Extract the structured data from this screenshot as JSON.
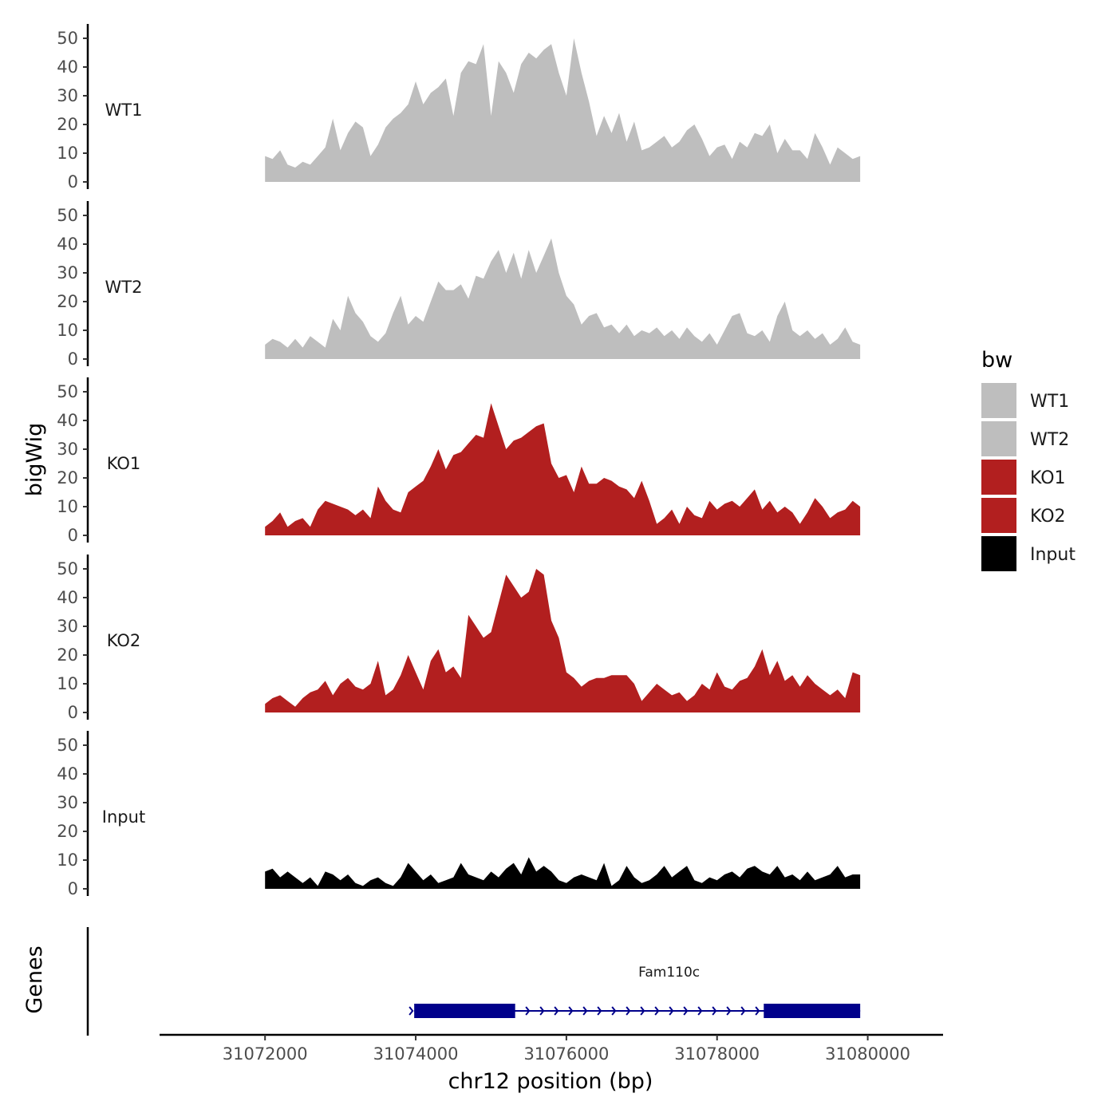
{
  "chart_data": {
    "type": "area",
    "title": "",
    "xlabel": "chr12 position (bp)",
    "ylabel": "bigWig",
    "genes_label": "Genes",
    "xlim": [
      31070600,
      31081000
    ],
    "x_ticks": [
      31072000,
      31074000,
      31076000,
      31078000,
      31080000
    ],
    "x_tick_labels": [
      "31072000",
      "31074000",
      "31076000",
      "31078000",
      "31080000"
    ],
    "ylim": [
      0,
      52
    ],
    "y_ticks": [
      0,
      10,
      20,
      30,
      40,
      50
    ],
    "y_tick_labels": [
      "0",
      "10",
      "20",
      "30",
      "40",
      "50"
    ],
    "grid": false,
    "legend": {
      "title": "bw",
      "position": "right",
      "entries": [
        {
          "label": "WT1",
          "color": "#bebebe"
        },
        {
          "label": "WT2",
          "color": "#bebebe"
        },
        {
          "label": "KO1",
          "color": "#b21f1f"
        },
        {
          "label": "KO2",
          "color": "#b21f1f"
        },
        {
          "label": "Input",
          "color": "#000000"
        }
      ]
    },
    "series": [
      {
        "name": "WT1",
        "color": "#bebebe",
        "x": [
          31072000,
          31072100,
          31072200,
          31072300,
          31072400,
          31072500,
          31072600,
          31072700,
          31072800,
          31072900,
          31073000,
          31073100,
          31073200,
          31073300,
          31073400,
          31073500,
          31073600,
          31073700,
          31073800,
          31073900,
          31074000,
          31074100,
          31074200,
          31074300,
          31074400,
          31074500,
          31074600,
          31074700,
          31074800,
          31074900,
          31075000,
          31075100,
          31075200,
          31075300,
          31075400,
          31075500,
          31075600,
          31075700,
          31075800,
          31075900,
          31076000,
          31076100,
          31076200,
          31076300,
          31076400,
          31076500,
          31076600,
          31076700,
          31076800,
          31076900,
          31077000,
          31077100,
          31077200,
          31077300,
          31077400,
          31077500,
          31077600,
          31077700,
          31077800,
          31077900,
          31078000,
          31078100,
          31078200,
          31078300,
          31078400,
          31078500,
          31078600,
          31078700,
          31078800,
          31078900,
          31079000,
          31079100,
          31079200,
          31079300,
          31079400,
          31079500,
          31079600,
          31079700,
          31079800,
          31079900
        ],
        "values": [
          9,
          8,
          11,
          6,
          5,
          7,
          6,
          9,
          12,
          22,
          11,
          17,
          21,
          19,
          9,
          13,
          19,
          22,
          24,
          27,
          35,
          27,
          31,
          33,
          36,
          23,
          38,
          42,
          41,
          48,
          23,
          42,
          38,
          31,
          41,
          45,
          43,
          46,
          48,
          38,
          30,
          50,
          38,
          28,
          16,
          23,
          17,
          24,
          14,
          21,
          11,
          12,
          14,
          16,
          12,
          14,
          18,
          20,
          15,
          9,
          12,
          13,
          8,
          14,
          12,
          17,
          16,
          20,
          10,
          15,
          11,
          11,
          8,
          17,
          12,
          6,
          12,
          10,
          8,
          9
        ]
      },
      {
        "name": "WT2",
        "color": "#bebebe",
        "x": [
          31072000,
          31072100,
          31072200,
          31072300,
          31072400,
          31072500,
          31072600,
          31072700,
          31072800,
          31072900,
          31073000,
          31073100,
          31073200,
          31073300,
          31073400,
          31073500,
          31073600,
          31073700,
          31073800,
          31073900,
          31074000,
          31074100,
          31074200,
          31074300,
          31074400,
          31074500,
          31074600,
          31074700,
          31074800,
          31074900,
          31075000,
          31075100,
          31075200,
          31075300,
          31075400,
          31075500,
          31075600,
          31075700,
          31075800,
          31075900,
          31076000,
          31076100,
          31076200,
          31076300,
          31076400,
          31076500,
          31076600,
          31076700,
          31076800,
          31076900,
          31077000,
          31077100,
          31077200,
          31077300,
          31077400,
          31077500,
          31077600,
          31077700,
          31077800,
          31077900,
          31078000,
          31078100,
          31078200,
          31078300,
          31078400,
          31078500,
          31078600,
          31078700,
          31078800,
          31078900,
          31079000,
          31079100,
          31079200,
          31079300,
          31079400,
          31079500,
          31079600,
          31079700,
          31079800,
          31079900
        ],
        "values": [
          5,
          7,
          6,
          4,
          7,
          4,
          8,
          6,
          4,
          14,
          10,
          22,
          16,
          13,
          8,
          6,
          9,
          16,
          22,
          12,
          15,
          13,
          20,
          27,
          24,
          24,
          26,
          21,
          29,
          28,
          34,
          38,
          30,
          37,
          28,
          38,
          30,
          36,
          42,
          30,
          22,
          19,
          12,
          15,
          16,
          11,
          12,
          9,
          12,
          8,
          10,
          9,
          11,
          8,
          10,
          7,
          11,
          8,
          6,
          9,
          5,
          10,
          15,
          16,
          9,
          8,
          10,
          6,
          15,
          20,
          10,
          8,
          10,
          7,
          9,
          5,
          7,
          11,
          6,
          5
        ]
      },
      {
        "name": "KO1",
        "color": "#b21f1f",
        "x": [
          31072000,
          31072100,
          31072200,
          31072300,
          31072400,
          31072500,
          31072600,
          31072700,
          31072800,
          31072900,
          31073000,
          31073100,
          31073200,
          31073300,
          31073400,
          31073500,
          31073600,
          31073700,
          31073800,
          31073900,
          31074000,
          31074100,
          31074200,
          31074300,
          31074400,
          31074500,
          31074600,
          31074700,
          31074800,
          31074900,
          31075000,
          31075100,
          31075200,
          31075300,
          31075400,
          31075500,
          31075600,
          31075700,
          31075800,
          31075900,
          31076000,
          31076100,
          31076200,
          31076300,
          31076400,
          31076500,
          31076600,
          31076700,
          31076800,
          31076900,
          31077000,
          31077100,
          31077200,
          31077300,
          31077400,
          31077500,
          31077600,
          31077700,
          31077800,
          31077900,
          31078000,
          31078100,
          31078200,
          31078300,
          31078400,
          31078500,
          31078600,
          31078700,
          31078800,
          31078900,
          31079000,
          31079100,
          31079200,
          31079300,
          31079400,
          31079500,
          31079600,
          31079700,
          31079800,
          31079900
        ],
        "values": [
          3,
          5,
          8,
          3,
          5,
          6,
          3,
          9,
          12,
          11,
          10,
          9,
          7,
          9,
          6,
          17,
          12,
          9,
          8,
          15,
          17,
          19,
          24,
          30,
          23,
          28,
          29,
          32,
          35,
          34,
          46,
          38,
          30,
          33,
          34,
          36,
          38,
          39,
          25,
          20,
          21,
          15,
          24,
          18,
          18,
          20,
          19,
          17,
          16,
          13,
          19,
          12,
          4,
          6,
          9,
          4,
          10,
          7,
          6,
          12,
          9,
          11,
          12,
          10,
          13,
          16,
          9,
          12,
          8,
          10,
          8,
          4,
          8,
          13,
          10,
          6,
          8,
          9,
          12,
          10
        ]
      },
      {
        "name": "KO2",
        "color": "#b21f1f",
        "x": [
          31072000,
          31072100,
          31072200,
          31072300,
          31072400,
          31072500,
          31072600,
          31072700,
          31072800,
          31072900,
          31073000,
          31073100,
          31073200,
          31073300,
          31073400,
          31073500,
          31073600,
          31073700,
          31073800,
          31073900,
          31074000,
          31074100,
          31074200,
          31074300,
          31074400,
          31074500,
          31074600,
          31074700,
          31074800,
          31074900,
          31075000,
          31075100,
          31075200,
          31075300,
          31075400,
          31075500,
          31075600,
          31075700,
          31075800,
          31075900,
          31076000,
          31076100,
          31076200,
          31076300,
          31076400,
          31076500,
          31076600,
          31076700,
          31076800,
          31076900,
          31077000,
          31077100,
          31077200,
          31077300,
          31077400,
          31077500,
          31077600,
          31077700,
          31077800,
          31077900,
          31078000,
          31078100,
          31078200,
          31078300,
          31078400,
          31078500,
          31078600,
          31078700,
          31078800,
          31078900,
          31079000,
          31079100,
          31079200,
          31079300,
          31079400,
          31079500,
          31079600,
          31079700,
          31079800,
          31079900
        ],
        "values": [
          3,
          5,
          6,
          4,
          2,
          5,
          7,
          8,
          11,
          6,
          10,
          12,
          9,
          8,
          10,
          18,
          6,
          8,
          13,
          20,
          14,
          8,
          18,
          22,
          14,
          16,
          12,
          34,
          30,
          26,
          28,
          38,
          48,
          44,
          40,
          42,
          50,
          48,
          32,
          26,
          14,
          12,
          9,
          11,
          12,
          12,
          13,
          13,
          13,
          10,
          4,
          7,
          10,
          8,
          6,
          7,
          4,
          6,
          10,
          8,
          14,
          9,
          8,
          11,
          12,
          16,
          22,
          13,
          18,
          11,
          13,
          9,
          13,
          10,
          8,
          6,
          8,
          5,
          14,
          13
        ]
      },
      {
        "name": "Input",
        "color": "#000000",
        "x": [
          31072000,
          31072100,
          31072200,
          31072300,
          31072400,
          31072500,
          31072600,
          31072700,
          31072800,
          31072900,
          31073000,
          31073100,
          31073200,
          31073300,
          31073400,
          31073500,
          31073600,
          31073700,
          31073800,
          31073900,
          31074000,
          31074100,
          31074200,
          31074300,
          31074400,
          31074500,
          31074600,
          31074700,
          31074800,
          31074900,
          31075000,
          31075100,
          31075200,
          31075300,
          31075400,
          31075500,
          31075600,
          31075700,
          31075800,
          31075900,
          31076000,
          31076100,
          31076200,
          31076300,
          31076400,
          31076500,
          31076600,
          31076700,
          31076800,
          31076900,
          31077000,
          31077100,
          31077200,
          31077300,
          31077400,
          31077500,
          31077600,
          31077700,
          31077800,
          31077900,
          31078000,
          31078100,
          31078200,
          31078300,
          31078400,
          31078500,
          31078600,
          31078700,
          31078800,
          31078900,
          31079000,
          31079100,
          31079200,
          31079300,
          31079400,
          31079500,
          31079600,
          31079700,
          31079800,
          31079900
        ],
        "values": [
          6,
          7,
          4,
          6,
          4,
          2,
          4,
          1,
          6,
          5,
          3,
          5,
          2,
          1,
          3,
          4,
          2,
          1,
          4,
          9,
          6,
          3,
          5,
          2,
          3,
          4,
          9,
          5,
          4,
          3,
          6,
          4,
          7,
          9,
          5,
          11,
          6,
          8,
          6,
          3,
          2,
          4,
          5,
          4,
          3,
          9,
          1,
          3,
          8,
          4,
          2,
          3,
          5,
          8,
          4,
          6,
          8,
          3,
          2,
          4,
          3,
          5,
          6,
          4,
          7,
          8,
          6,
          5,
          8,
          4,
          5,
          3,
          6,
          3,
          4,
          5,
          8,
          4,
          5,
          5
        ]
      }
    ],
    "genes": [
      {
        "name": "Fam110c",
        "start": 31073980,
        "end": 31079900,
        "strand": "+",
        "color": "#00008b",
        "exons": [
          [
            31073980,
            31075320
          ],
          [
            31078620,
            31079900
          ]
        ]
      }
    ]
  }
}
